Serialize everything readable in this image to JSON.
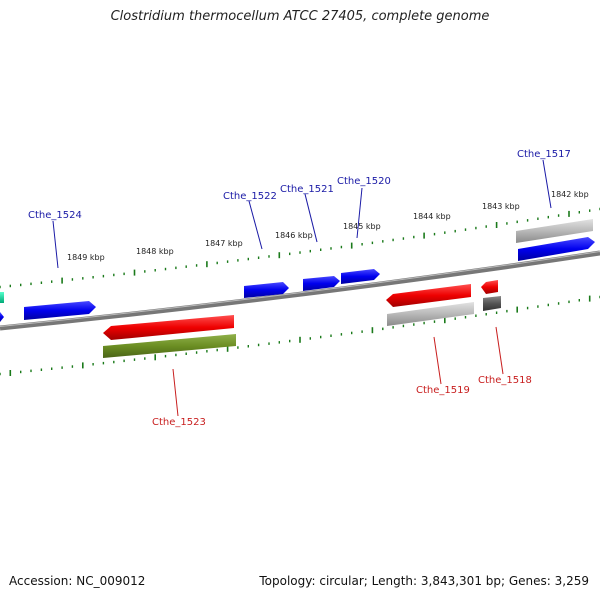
{
  "title": "Clostridium thermocellum ATCC 27405, complete genome",
  "footer": {
    "accession": "Accession: NC_009012",
    "topology": "Topology: circular; Length: 3,843,301 bp; Genes: 3,259"
  },
  "colors": {
    "forward_gene": "#0000ee",
    "reverse_gene": "#ee0000",
    "label_forward": "#1a1aa6",
    "label_reverse": "#c81e1e",
    "tick": "#1a7a1a",
    "backbone": "#777777",
    "olive_feature": "#6b8e23",
    "gray_feature": "#b0b0b0",
    "dark_gray_feature": "#555555",
    "teal_feature": "#00dd99"
  },
  "scale_labels": [
    "1849 kbp",
    "1848 kbp",
    "1847 kbp",
    "1846 kbp",
    "1845 kbp",
    "1844 kbp",
    "1843 kbp",
    "1842 kbp"
  ],
  "gene_labels": {
    "forward": [
      "Cthe_1524",
      "Cthe_1522",
      "Cthe_1521",
      "Cthe_1520",
      "Cthe_1517"
    ],
    "reverse": [
      "Cthe_1523",
      "Cthe_1519",
      "Cthe_1518"
    ]
  }
}
